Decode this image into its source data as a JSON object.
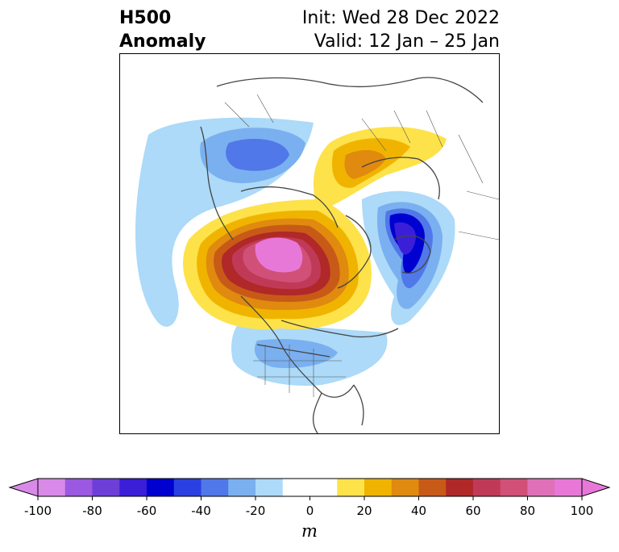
{
  "header": {
    "title_line1": "H500",
    "title_line2": "Anomaly",
    "init_text": "Init: Wed 28 Dec 2022",
    "valid_text": "Valid: 12 Jan – 25 Jan"
  },
  "colorbar": {
    "unit": "m",
    "tick_labels": [
      "-100",
      "-80",
      "-60",
      "-40",
      "-20",
      "0",
      "20",
      "40",
      "60",
      "80",
      "100"
    ],
    "min": -100,
    "max": 100,
    "step": 10,
    "colors": [
      "#d98ae8",
      "#9b58e0",
      "#6e3ed8",
      "#3b1ed8",
      "#0000d0",
      "#2a40e0",
      "#5078e8",
      "#7ab0f0",
      "#acdaf8",
      "#ffffff",
      "#ffffff",
      "#fde24a",
      "#f0b400",
      "#e08a10",
      "#c85a18",
      "#b02828",
      "#c03a58",
      "#d05078",
      "#e070b8",
      "#e878d8"
    ],
    "extend_low_color": "#d98ae8",
    "extend_high_color": "#e878d8"
  },
  "map": {
    "projection": "polar stereographic (North Pole)",
    "features": [
      "coastlines",
      "country borders",
      "US state borders"
    ],
    "anomaly_centers": [
      {
        "label": "positive",
        "region": "Arctic / Alaska-Siberia",
        "value_m": 100
      },
      {
        "label": "negative",
        "region": "North Atlantic / Greenland south",
        "value_m": -70
      },
      {
        "label": "negative",
        "region": "Eurasia north",
        "value_m": -50
      },
      {
        "label": "negative",
        "region": "Contiguous United States",
        "value_m": -30
      },
      {
        "label": "positive",
        "region": "Scandinavia / Europe",
        "value_m": 40
      }
    ]
  }
}
